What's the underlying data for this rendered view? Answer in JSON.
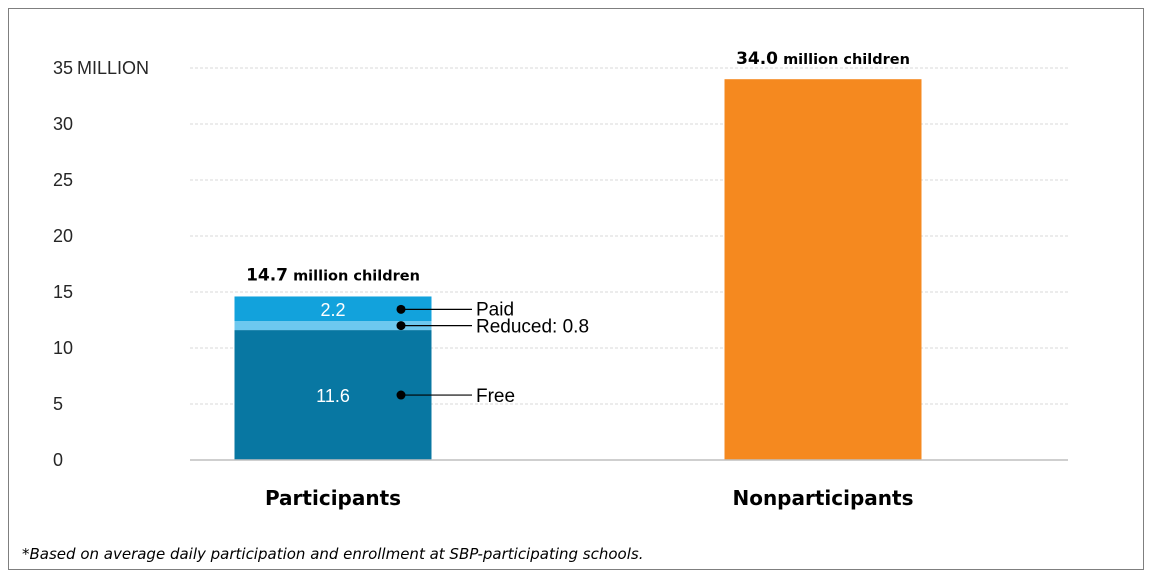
{
  "chart_data": {
    "type": "bar",
    "stacked": true,
    "categories": [
      "Participants",
      "Nonparticipants"
    ],
    "series": [
      {
        "name": "Free",
        "values": [
          11.6,
          0
        ],
        "color": "#0877a2"
      },
      {
        "name": "Reduced",
        "values": [
          0.8,
          0
        ],
        "color": "#6dc8ef"
      },
      {
        "name": "Paid",
        "values": [
          2.2,
          0
        ],
        "color": "#12a2dc"
      },
      {
        "name": "",
        "values": [
          0,
          34.0
        ],
        "color": "#f5891f"
      }
    ],
    "segment_labels": {
      "free": "11.6",
      "paid": "2.2"
    },
    "callouts": {
      "paid": "Paid",
      "reduced": "Reduced: 0.8",
      "free": "Free"
    },
    "totals": [
      {
        "value": "14.7",
        "text": "million children",
        "total": 14.7
      },
      {
        "value": "34.0",
        "text": "million children",
        "total": 34.0
      }
    ],
    "y_ticks": [
      "0",
      "5",
      "10",
      "15",
      "20",
      "25",
      "30",
      "35"
    ],
    "y_unit": "MILLION",
    "ylim": [
      0,
      35
    ],
    "grid": true,
    "footnote": "*Based on average daily participation and enrollment at SBP-participating schools."
  }
}
